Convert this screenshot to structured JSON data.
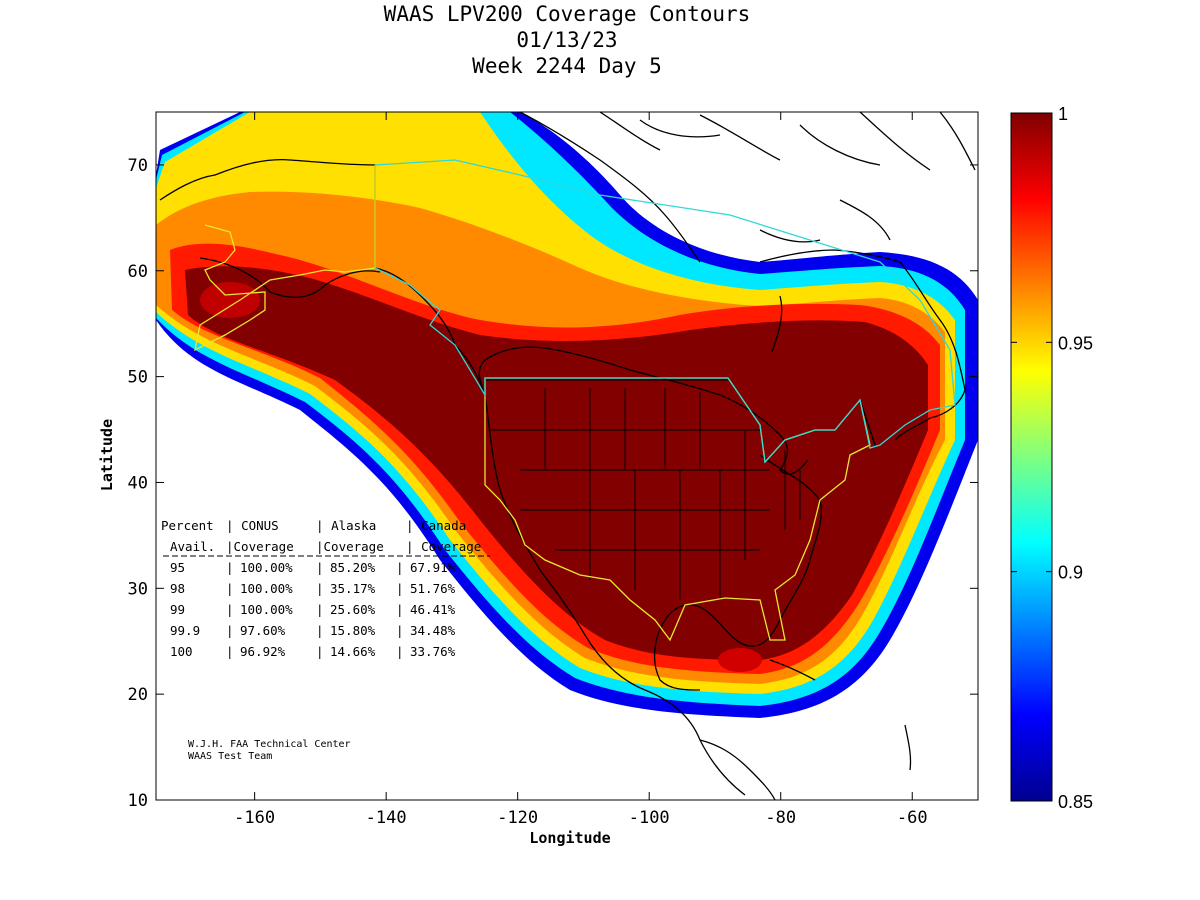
{
  "title": {
    "line1": "WAAS LPV200 Coverage Contours",
    "line2": "01/13/23",
    "line3": "Week 2244 Day 5"
  },
  "axes": {
    "xlabel": "Longitude",
    "ylabel": "Latitude",
    "x_range": [
      -175,
      -50
    ],
    "y_range": [
      10,
      75
    ],
    "x_ticks": [
      "-160",
      "-140",
      "-120",
      "-100",
      "-80",
      "-60"
    ],
    "y_ticks": [
      "10",
      "20",
      "30",
      "40",
      "50",
      "60",
      "70"
    ]
  },
  "colorbar": {
    "colormap": "jet",
    "min": 0.85,
    "max": 1,
    "tick_labels": [
      "1",
      "0.95",
      "0.9",
      "0.85"
    ]
  },
  "coverage_table": {
    "header1": [
      "Percent",
      "CONUS",
      "Alaska",
      "Canada"
    ],
    "header2": [
      "Avail.",
      "Coverage",
      "Coverage",
      "Coverage"
    ],
    "rows": [
      {
        "percent": "95",
        "conus": "100.00%",
        "alaska": "85.20%",
        "canada": "67.91%"
      },
      {
        "percent": "98",
        "conus": "100.00%",
        "alaska": "35.17%",
        "canada": "51.76%"
      },
      {
        "percent": "99",
        "conus": "100.00%",
        "alaska": "25.60%",
        "canada": "46.41%"
      },
      {
        "percent": "99.9",
        "conus": "97.60%",
        "alaska": "15.80%",
        "canada": "34.48%"
      },
      {
        "percent": "100",
        "conus": "96.92%",
        "alaska": "14.66%",
        "canada": "33.76%"
      }
    ]
  },
  "credits": {
    "line1": "W.J.H. FAA Technical Center",
    "line2": "WAAS Test Team"
  },
  "colors": {
    "boundary_yellow": "#e8e830",
    "boundary_cyan": "#30d8d8",
    "coast": "#000000"
  }
}
